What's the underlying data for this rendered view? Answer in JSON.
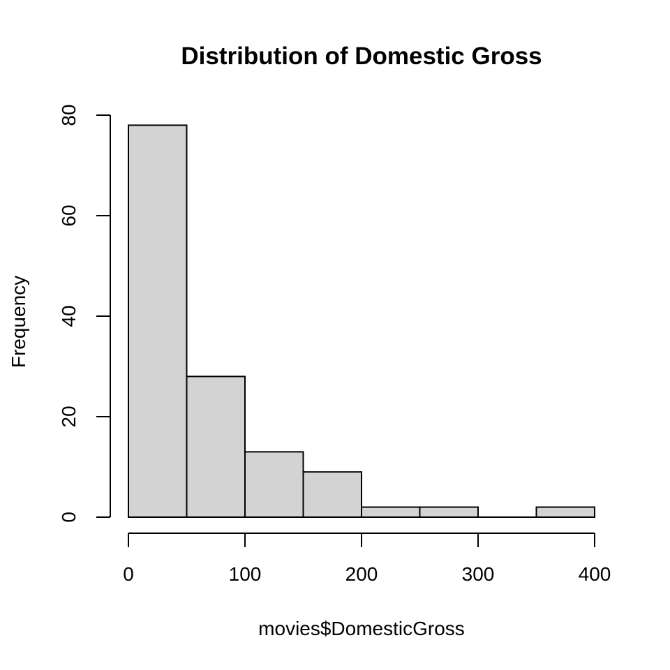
{
  "chart_data": {
    "type": "bar",
    "title": "Distribution of Domestic Gross",
    "xlabel": "movies$DomesticGross",
    "ylabel": "Frequency",
    "bins": [
      {
        "from": 0,
        "to": 50,
        "count": 78
      },
      {
        "from": 50,
        "to": 100,
        "count": 28
      },
      {
        "from": 100,
        "to": 150,
        "count": 13
      },
      {
        "from": 150,
        "to": 200,
        "count": 9
      },
      {
        "from": 200,
        "to": 250,
        "count": 2
      },
      {
        "from": 250,
        "to": 300,
        "count": 2
      },
      {
        "from": 300,
        "to": 350,
        "count": 0
      },
      {
        "from": 350,
        "to": 400,
        "count": 2
      }
    ],
    "xlim": [
      0,
      400
    ],
    "ylim": [
      0,
      80
    ],
    "x_ticks": [
      "0",
      "100",
      "200",
      "300",
      "400"
    ],
    "y_ticks": [
      "0",
      "20",
      "40",
      "60",
      "80"
    ],
    "grid": false,
    "bar_color": "#d3d3d3"
  }
}
